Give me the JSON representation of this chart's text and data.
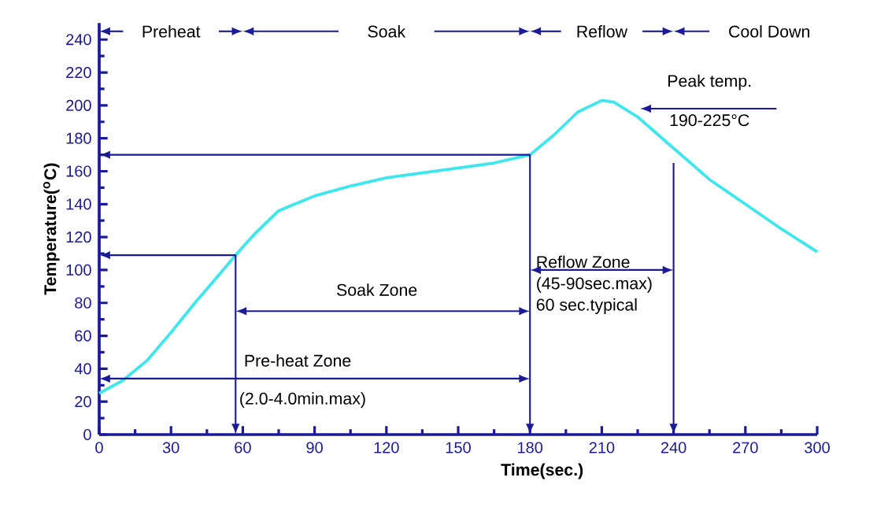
{
  "chart_data": {
    "type": "line",
    "xlabel": "Time(sec.)",
    "ylabel": "Temperature($^{o}$C)",
    "x": [
      0,
      10,
      20,
      30,
      40,
      50,
      57,
      65,
      75,
      90,
      105,
      120,
      135,
      150,
      165,
      180,
      190,
      200,
      210,
      215,
      225,
      240,
      255,
      270,
      285,
      300
    ],
    "series": [
      {
        "color": "#3ee6ee",
        "values": [
          25,
          33,
          45,
          62,
          80,
          97,
          109,
          122,
          136,
          145,
          151,
          156,
          159,
          162,
          165,
          170,
          182,
          196,
          203,
          202,
          193,
          174,
          155,
          140,
          125,
          111
        ]
      }
    ],
    "xlim": [
      0,
      300
    ],
    "ylim": [
      0,
      250
    ],
    "xticks": [
      0,
      30,
      60,
      90,
      120,
      150,
      180,
      210,
      240,
      270,
      300
    ],
    "yticks": [
      0,
      20,
      40,
      60,
      80,
      100,
      120,
      140,
      160,
      180,
      200,
      220,
      240
    ],
    "annotations": [
      "Preheat",
      "Soak",
      "Reflow",
      "Cool Down",
      "Peak temp.",
      "190-225°C",
      "Reflow Zone",
      "(45-90sec.max)",
      "60 sec.typical",
      "Soak Zone",
      "Pre-heat Zone",
      "(2.0-4.0min.max)"
    ]
  }
}
